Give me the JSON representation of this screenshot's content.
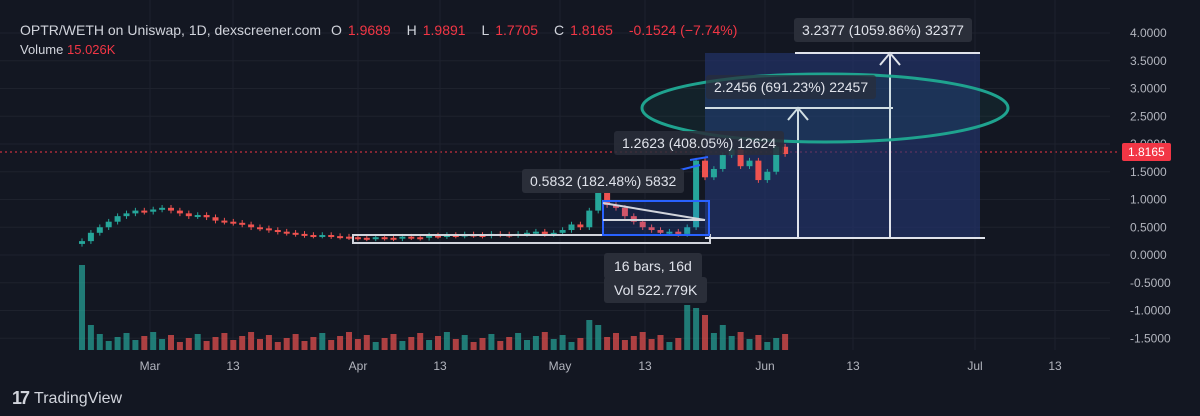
{
  "legend": {
    "symbol": "OPTR/WETH on Uniswap, 1D, dexscreener.com",
    "o_label": "O",
    "o": "1.9689",
    "h_label": "H",
    "h": "1.9891",
    "l_label": "L",
    "l": "1.7705",
    "c_label": "C",
    "c": "1.8165",
    "change": "-0.1524 (−7.74%)",
    "volume_label": "Volume",
    "volume": "15.026K"
  },
  "last_price": "1.8165",
  "price_axis": [
    "4.0000",
    "3.5000",
    "3.0000",
    "2.5000",
    "2.0000",
    "1.5000",
    "1.0000",
    "0.5000",
    "0.0000",
    "-0.5000",
    "-1.0000",
    "-1.5000"
  ],
  "time_axis": [
    "Mar",
    "13",
    "Apr",
    "13",
    "May",
    "13",
    "Jun",
    "13",
    "Jul",
    "13"
  ],
  "annotations": {
    "target1": "0.5832 (182.48%) 5832",
    "target2": "1.2623 (408.05%) 12624",
    "target3": "2.2456 (691.23%) 22457",
    "target4": "3.2377 (1059.86%) 32377",
    "range_bars": "16 bars, 16d",
    "range_vol": "Vol 522.779K"
  },
  "colors": {
    "up": "#26a69a",
    "down": "#ef5350",
    "bg": "#131722",
    "ellipse": "#1fa38f",
    "projection": "#2a3a7a"
  },
  "brand": "TradingView",
  "chart_data": {
    "type": "candlestick",
    "ylim": [
      -1.7,
      4.2
    ],
    "description": "Daily candles Feb–early Jun",
    "closes": [
      0.25,
      0.4,
      0.5,
      0.6,
      0.7,
      0.75,
      0.8,
      0.78,
      0.82,
      0.85,
      0.8,
      0.75,
      0.7,
      0.72,
      0.68,
      0.62,
      0.6,
      0.58,
      0.55,
      0.5,
      0.48,
      0.45,
      0.42,
      0.4,
      0.38,
      0.36,
      0.35,
      0.36,
      0.34,
      0.33,
      0.32,
      0.31,
      0.3,
      0.32,
      0.31,
      0.3,
      0.33,
      0.32,
      0.31,
      0.35,
      0.34,
      0.36,
      0.35,
      0.37,
      0.36,
      0.35,
      0.38,
      0.37,
      0.36,
      0.38,
      0.4,
      0.42,
      0.38,
      0.4,
      0.45,
      0.55,
      0.5,
      0.8,
      1.2,
      0.9,
      0.85,
      0.7,
      0.6,
      0.5,
      0.45,
      0.4,
      0.42,
      0.38,
      0.5,
      1.7,
      1.4,
      1.55,
      1.8,
      1.9,
      1.6,
      1.7,
      1.35,
      1.5,
      1.95,
      1.82
    ]
  }
}
